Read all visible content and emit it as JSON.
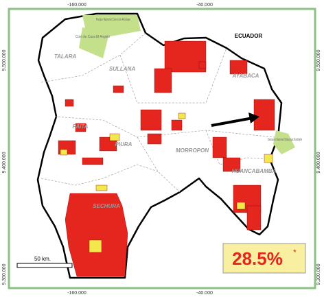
{
  "grid_labels": {
    "top": [
      "-160.000",
      "-40.000"
    ],
    "bottom": [
      "-160.000",
      "-40.000"
    ],
    "left": [
      "9.500.000",
      "9.400.000",
      "9.300.000"
    ],
    "right": [
      "9.500.000",
      "9.400.000",
      "9.300.000"
    ]
  },
  "places": {
    "ecuador": "ECUADOR",
    "talara": "TALARA",
    "sullana": "SULLANA",
    "ayabaca": "AYABACA",
    "paita": "PAITA",
    "piura": "PIURA",
    "morropon": "MORROPON",
    "huancabamba": "HUANCABAMBA",
    "sechura": "SECHURA"
  },
  "protected_areas": {
    "amotape": "Parque Nacional Cerros de Amotape",
    "angolo": "Coto de Caza El Angolo",
    "tabaconas": "Santuario Nacional Tabaconas Namballe"
  },
  "scale": "50 km.",
  "share": {
    "text": "28.5%",
    "note": "*"
  }
}
